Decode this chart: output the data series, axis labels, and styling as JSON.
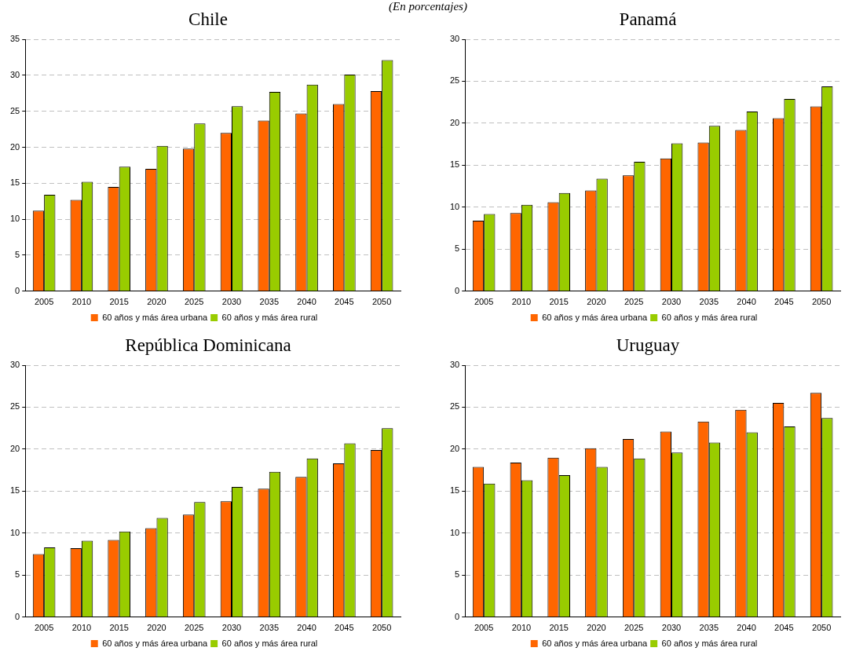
{
  "chart_data": [
    {
      "type": "bar",
      "title": "Chile",
      "annotations": [
        "(En porcentajes)"
      ],
      "categories": [
        "2005",
        "2010",
        "2015",
        "2020",
        "2025",
        "2030",
        "2035",
        "2040",
        "2045",
        "2050"
      ],
      "series": [
        {
          "name": "60 años y más área urbana",
          "color": "#ff6600",
          "values": [
            11.2,
            12.7,
            14.5,
            17,
            19.8,
            22,
            23.7,
            24.7,
            26,
            27.8
          ]
        },
        {
          "name": "60 años y más área rural",
          "color": "#99cc00",
          "values": [
            13.4,
            15.2,
            17.3,
            20.2,
            23.3,
            25.7,
            27.7,
            28.7,
            30.1,
            32.1
          ]
        }
      ],
      "ylim": [
        0,
        35
      ],
      "yticks": [
        0,
        5,
        10,
        15,
        20,
        25,
        30,
        35
      ],
      "grid": "y",
      "legend": "bottom"
    },
    {
      "type": "bar",
      "title": "Panamá",
      "categories": [
        "2005",
        "2010",
        "2015",
        "2020",
        "2025",
        "2030",
        "2035",
        "2040",
        "2045",
        "2050"
      ],
      "series": [
        {
          "name": "60 años y más área urbana",
          "color": "#ff6600",
          "values": [
            8.4,
            9.3,
            10.6,
            12,
            13.8,
            15.8,
            17.7,
            19.2,
            20.6,
            22
          ]
        },
        {
          "name": "60 años y más área rural",
          "color": "#99cc00",
          "values": [
            9.2,
            10.3,
            11.7,
            13.4,
            15.4,
            17.6,
            19.7,
            21.4,
            22.9,
            24.4
          ]
        }
      ],
      "ylim": [
        0,
        30
      ],
      "yticks": [
        0,
        5,
        10,
        15,
        20,
        25,
        30
      ],
      "grid": "y",
      "legend": "bottom"
    },
    {
      "type": "bar",
      "title": "República Dominicana",
      "categories": [
        "2005",
        "2010",
        "2015",
        "2020",
        "2025",
        "2030",
        "2035",
        "2040",
        "2045",
        "2050"
      ],
      "series": [
        {
          "name": "60 años y más área urbana",
          "color": "#ff6600",
          "values": [
            7.5,
            8.2,
            9.2,
            10.6,
            12.2,
            13.8,
            15.3,
            16.7,
            18.3,
            19.9
          ]
        },
        {
          "name": "60 años y más área rural",
          "color": "#99cc00",
          "values": [
            8.3,
            9.1,
            10.2,
            11.8,
            13.7,
            15.5,
            17.3,
            18.9,
            20.7,
            22.5
          ]
        }
      ],
      "ylim": [
        0,
        30
      ],
      "yticks": [
        0,
        5,
        10,
        15,
        20,
        25,
        30
      ],
      "grid": "y",
      "legend": "bottom"
    },
    {
      "type": "bar",
      "title": "Uruguay",
      "categories": [
        "2005",
        "2010",
        "2015",
        "2020",
        "2025",
        "2030",
        "2035",
        "2040",
        "2045",
        "2050"
      ],
      "series": [
        {
          "name": "60 años y más área urbana",
          "color": "#ff6600",
          "values": [
            17.9,
            18.4,
            19,
            20.1,
            21.2,
            22.1,
            23.3,
            24.7,
            25.5,
            26.7
          ]
        },
        {
          "name": "60 años y más área rural",
          "color": "#99cc00",
          "values": [
            15.9,
            16.3,
            16.9,
            17.9,
            18.9,
            19.6,
            20.8,
            22,
            22.7,
            23.7
          ]
        }
      ],
      "ylim": [
        0,
        30
      ],
      "yticks": [
        0,
        5,
        10,
        15,
        20,
        25,
        30
      ],
      "grid": "y",
      "legend": "bottom"
    }
  ]
}
